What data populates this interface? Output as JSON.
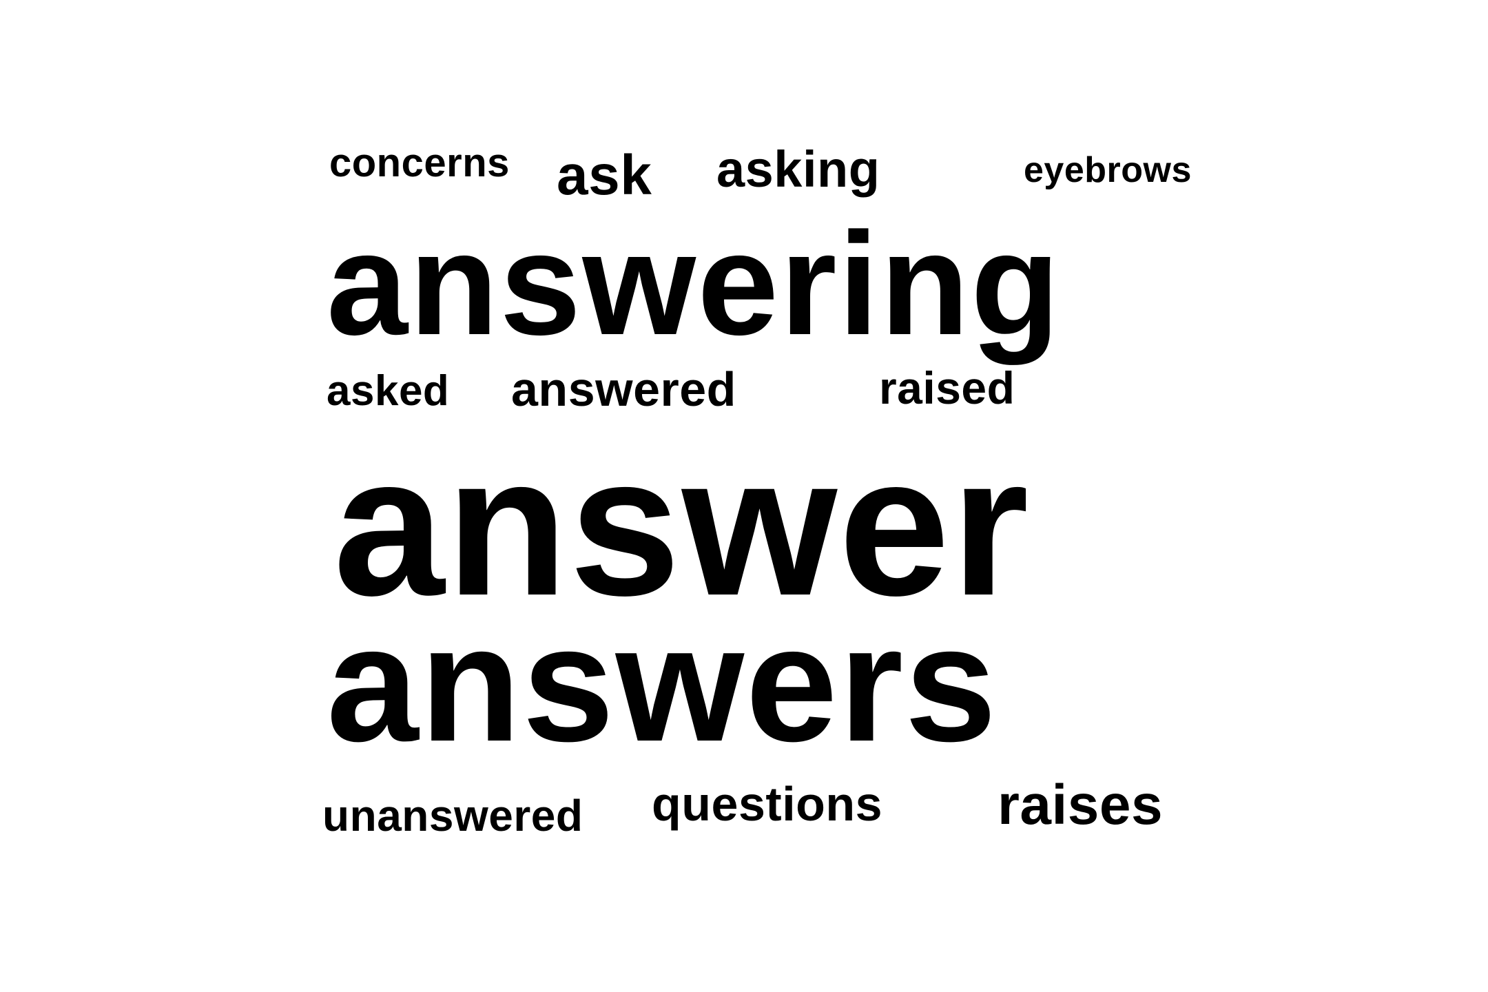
{
  "word_cloud": {
    "words": {
      "concerns": "concerns",
      "ask": "ask",
      "asking": "asking",
      "eyebrows": "eyebrows",
      "answering": "answering",
      "asked": "asked",
      "answered": "answered",
      "raised": "raised",
      "answer": "answer",
      "answers": "answers",
      "unanswered": "unanswered",
      "questions": "questions",
      "raises": "raises"
    }
  },
  "colors": {
    "background": "#ffffff",
    "text": "#000000"
  }
}
